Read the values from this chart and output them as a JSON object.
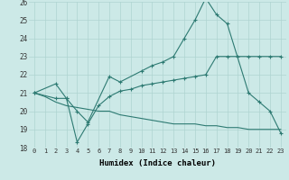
{
  "xlabel": "Humidex (Indice chaleur)",
  "xlim": [
    -0.5,
    23.5
  ],
  "ylim": [
    18,
    26
  ],
  "yticks": [
    18,
    19,
    20,
    21,
    22,
    23,
    24,
    25,
    26
  ],
  "xticks": [
    0,
    1,
    2,
    3,
    4,
    5,
    6,
    7,
    8,
    9,
    10,
    11,
    12,
    13,
    14,
    15,
    16,
    17,
    18,
    19,
    20,
    21,
    22,
    23
  ],
  "background_color": "#cce9e7",
  "grid_color": "#aed4d1",
  "line_color": "#2d7a72",
  "line1_x": [
    0,
    2,
    3,
    4,
    5,
    7,
    8,
    10,
    11,
    12,
    13,
    14,
    15,
    16,
    17,
    18,
    20,
    21,
    22,
    23
  ],
  "line1_y": [
    21.0,
    21.5,
    20.7,
    20.0,
    19.4,
    21.9,
    21.6,
    22.2,
    22.5,
    22.7,
    23.0,
    24.0,
    25.0,
    26.2,
    25.3,
    24.8,
    21.0,
    20.5,
    20.0,
    18.8
  ],
  "line2_x": [
    0,
    2,
    3,
    4,
    5,
    6,
    7,
    8,
    9,
    10,
    11,
    12,
    13,
    14,
    15,
    16,
    17,
    18,
    19,
    20,
    21,
    22,
    23
  ],
  "line2_y": [
    21.0,
    20.7,
    20.7,
    18.3,
    19.3,
    20.3,
    20.8,
    21.1,
    21.2,
    21.4,
    21.5,
    21.6,
    21.7,
    21.8,
    21.9,
    22.0,
    23.0,
    23.0,
    23.0,
    23.0,
    23.0,
    23.0,
    23.0
  ],
  "line3_x": [
    0,
    1,
    2,
    3,
    4,
    5,
    6,
    7,
    8,
    9,
    10,
    11,
    12,
    13,
    14,
    15,
    16,
    17,
    18,
    19,
    20,
    21,
    22,
    23
  ],
  "line3_y": [
    21.0,
    20.8,
    20.5,
    20.3,
    20.2,
    20.1,
    20.0,
    20.0,
    19.8,
    19.7,
    19.6,
    19.5,
    19.4,
    19.3,
    19.3,
    19.3,
    19.2,
    19.2,
    19.1,
    19.1,
    19.0,
    19.0,
    19.0,
    19.0
  ]
}
